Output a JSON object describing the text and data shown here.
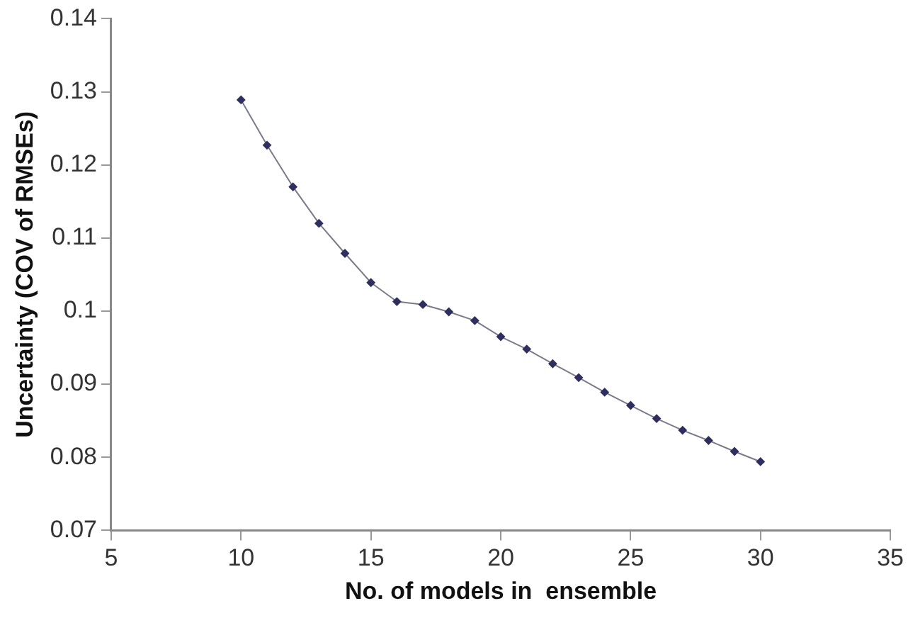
{
  "chart_data": {
    "type": "line",
    "xlabel": "No. of models in  ensemble",
    "ylabel": "Uncertainty (COV of RMSEs)",
    "x": [
      10,
      11,
      12,
      13,
      14,
      15,
      16,
      17,
      18,
      19,
      20,
      21,
      22,
      23,
      24,
      25,
      26,
      27,
      28,
      29,
      30
    ],
    "series": [
      {
        "color": "#2f2f5f",
        "values": [
          0.1289,
          0.1227,
          0.117,
          0.112,
          0.1079,
          0.1039,
          0.1013,
          0.1009,
          0.0999,
          0.0987,
          0.0965,
          0.0948,
          0.0928,
          0.0909,
          0.0889,
          0.0871,
          0.0853,
          0.0837,
          0.0823,
          0.0808,
          0.0794
        ]
      }
    ],
    "xlim": [
      5,
      35
    ],
    "xticks": [
      5,
      10,
      15,
      20,
      25,
      30,
      35
    ],
    "ylim": [
      0.07,
      0.14
    ],
    "yticks": [
      0.07,
      0.08,
      0.09,
      0.1,
      0.11,
      0.12,
      0.13,
      0.14
    ],
    "grid": false,
    "legend": false,
    "marker": "diamond",
    "line_style": "solid"
  }
}
